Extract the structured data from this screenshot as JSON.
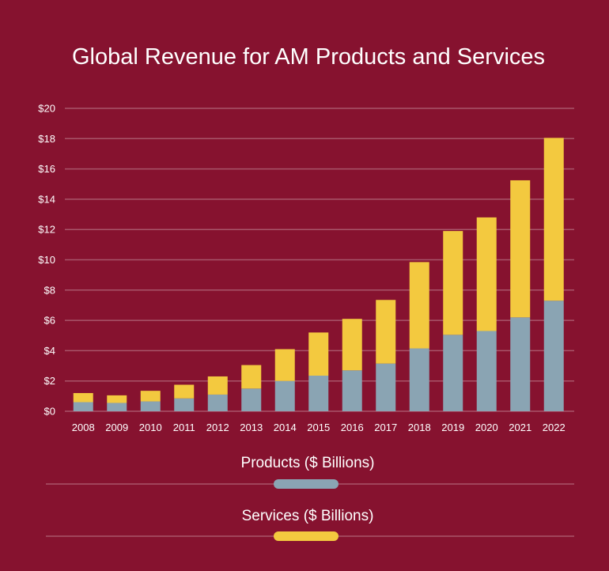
{
  "chart_data": {
    "type": "bar",
    "stacked": true,
    "title": "Global Revenue for AM Products and Services",
    "categories": [
      "2008",
      "2009",
      "2010",
      "2011",
      "2012",
      "2013",
      "2014",
      "2015",
      "2016",
      "2017",
      "2018",
      "2019",
      "2020",
      "2021",
      "2022"
    ],
    "series": [
      {
        "name": "Products ($ Billions)",
        "color": "#8aa4b3",
        "values": [
          0.6,
          0.55,
          0.65,
          0.85,
          1.1,
          1.5,
          2.0,
          2.35,
          2.7,
          3.15,
          4.15,
          5.05,
          5.3,
          6.2,
          7.3
        ]
      },
      {
        "name": "Services ($ Billions)",
        "color": "#f3c93f",
        "values": [
          0.6,
          0.5,
          0.7,
          0.9,
          1.2,
          1.55,
          2.1,
          2.85,
          3.4,
          4.2,
          5.7,
          6.85,
          7.5,
          9.05,
          10.75
        ]
      }
    ],
    "yticks": [
      "$0",
      "$2",
      "$4",
      "$6",
      "$8",
      "$10",
      "$12",
      "$14",
      "$16",
      "$18",
      "$20"
    ],
    "ylim": [
      0,
      20
    ],
    "grid": true,
    "legend_position": "bottom",
    "background_color": "#86122f",
    "gridline_color": "#a8556a"
  }
}
